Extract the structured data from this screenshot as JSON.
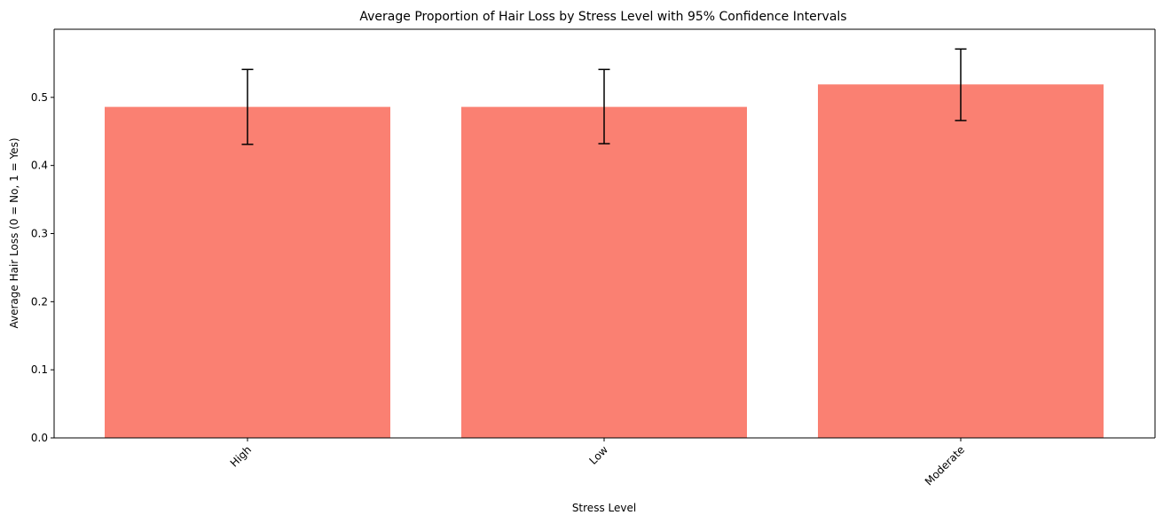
{
  "chart_data": {
    "type": "bar",
    "title": "Average Proportion of Hair Loss by Stress Level with 95% Confidence Intervals",
    "xlabel": "Stress Level",
    "ylabel": "Average Hair Loss (0 = No, 1 = Yes)",
    "categories": [
      "High",
      "Low",
      "Moderate"
    ],
    "values": [
      0.486,
      0.486,
      0.519
    ],
    "ci_lower": [
      0.431,
      0.432,
      0.466
    ],
    "ci_upper": [
      0.541,
      0.541,
      0.571
    ],
    "ylim": [
      0,
      0.6
    ],
    "yticks": [
      "0.0",
      "0.1",
      "0.2",
      "0.3",
      "0.4",
      "0.5"
    ],
    "x_tick_rotation_deg": 45,
    "grid": false,
    "legend": "none",
    "colors": {
      "bar": "#fa8072",
      "error_bar": "#000000",
      "axis": "#000000"
    }
  }
}
